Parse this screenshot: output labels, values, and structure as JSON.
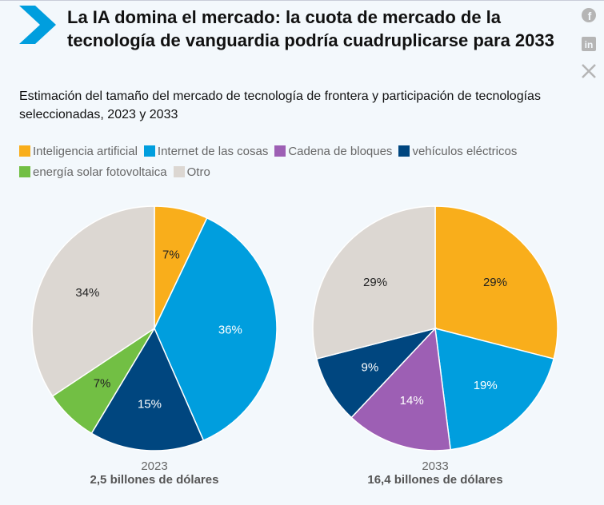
{
  "title": "La IA domina el mercado: la cuota de mercado de la tecnología de vanguardia podría cuadruplicarse para 2033",
  "social": [
    "facebook-icon",
    "linkedin-icon",
    "x-icon"
  ],
  "chart_data": {
    "type": "pie",
    "title": "Estimación del tamaño del mercado de tecnología de frontera y participación de tecnologías seleccionadas, 2023 y 2033",
    "legend_position": "top",
    "categories": [
      "Inteligencia artificial",
      "Internet de las cosas",
      "Cadena de bloques",
      "vehículos eléctricos",
      "energía solar fotovoltaica",
      "Otro"
    ],
    "colors": [
      "#f9ae1b",
      "#009ede",
      "#9d5fb4",
      "#00467f",
      "#72bf44",
      "#dcd7d2"
    ],
    "pies": [
      {
        "year": "2023",
        "total": "2,5 billones de dólares",
        "values": [
          7,
          36,
          0,
          15,
          7,
          34
        ]
      },
      {
        "year": "2033",
        "total": "16,4 billones de dólares",
        "values": [
          29,
          19,
          14,
          9,
          0,
          29
        ]
      }
    ]
  }
}
